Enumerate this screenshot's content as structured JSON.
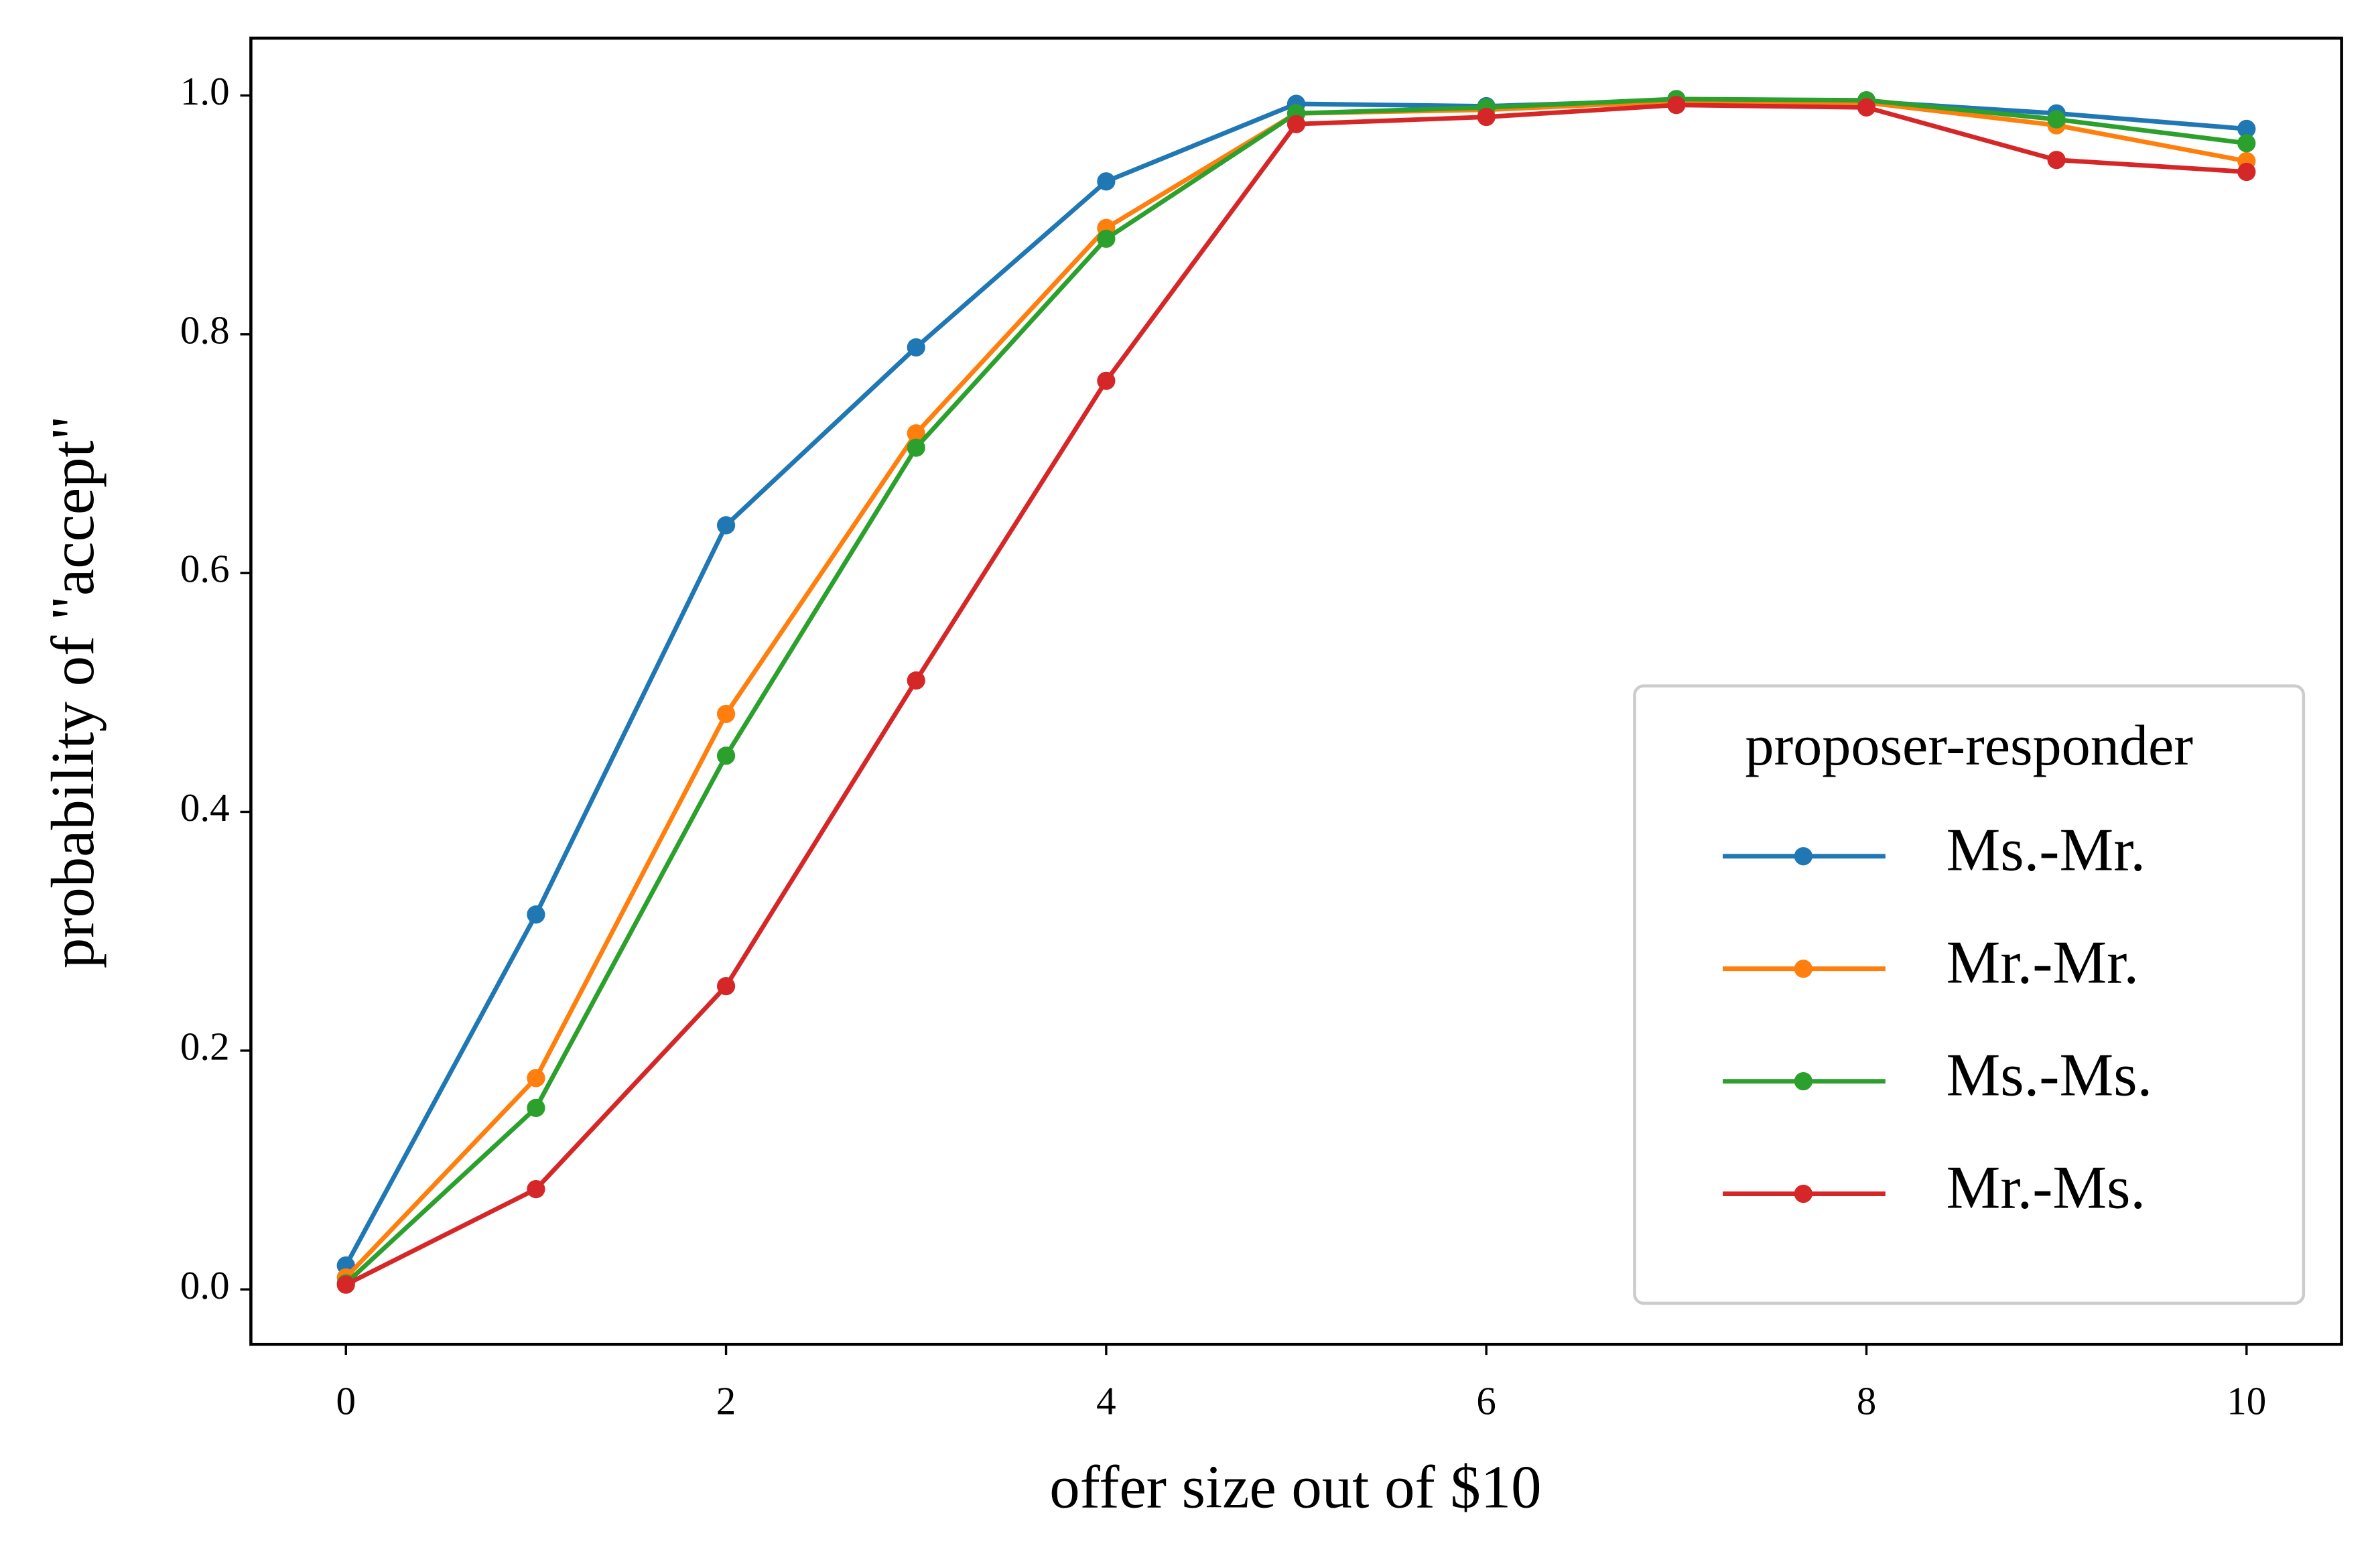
{
  "chart_data": {
    "type": "line",
    "x": [
      0,
      1,
      2,
      3,
      4,
      5,
      6,
      7,
      8,
      9,
      10
    ],
    "xlabel": "offer size out of $10",
    "ylabel": "probability of  \"accept\"",
    "xlim": [
      -0.5,
      10.5
    ],
    "xticks": [
      0,
      2,
      4,
      6,
      8,
      10
    ],
    "ylim": [
      -0.046,
      1.048
    ],
    "yticks": [
      {
        "value": 0,
        "label": "0.0"
      },
      0.2,
      0.4,
      0.6,
      0.8,
      {
        "value": 1,
        "label": "1.0"
      }
    ],
    "legend_title": "proposer-responder",
    "legend": "lower right",
    "series": [
      {
        "name": "Ms.-Mr.",
        "color": "#1f77b4",
        "values": [
          0.02,
          0.314,
          0.64,
          0.789,
          0.928,
          0.993,
          0.991,
          0.996,
          0.995,
          0.985,
          0.972
        ]
      },
      {
        "name": "Mr.-Mr.",
        "color": "#ff7f0e",
        "values": [
          0.01,
          0.177,
          0.482,
          0.717,
          0.889,
          0.985,
          0.988,
          0.995,
          0.994,
          0.975,
          0.945
        ]
      },
      {
        "name": "Ms.-Ms.",
        "color": "#2ca02c",
        "values": [
          0.005,
          0.152,
          0.447,
          0.705,
          0.88,
          0.985,
          0.99,
          0.997,
          0.996,
          0.98,
          0.96
        ]
      },
      {
        "name": "Mr.-Ms.",
        "color": "#d62728",
        "values": [
          0.004,
          0.084,
          0.254,
          0.51,
          0.761,
          0.976,
          0.982,
          0.992,
          0.99,
          0.946,
          0.936
        ]
      }
    ]
  }
}
